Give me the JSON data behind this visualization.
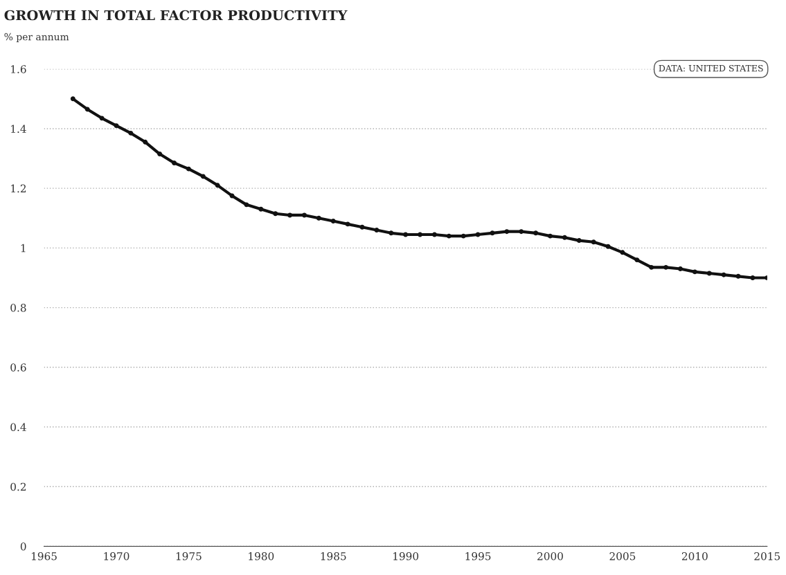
{
  "chart_data": {
    "type": "line",
    "title": "GROWTH IN TOTAL FACTOR PRODUCTIVITY",
    "subtitle": "% per annum",
    "annotations": [
      "DATA: UNITED STATES"
    ],
    "x": [
      1967,
      1968,
      1969,
      1970,
      1971,
      1972,
      1973,
      1974,
      1975,
      1976,
      1977,
      1978,
      1979,
      1980,
      1981,
      1982,
      1983,
      1984,
      1985,
      1986,
      1987,
      1988,
      1989,
      1990,
      1991,
      1992,
      1993,
      1994,
      1995,
      1996,
      1997,
      1998,
      1999,
      2000,
      2001,
      2002,
      2003,
      2004,
      2005,
      2006,
      2007,
      2008,
      2009,
      2010,
      2011,
      2012,
      2013,
      2014,
      2015
    ],
    "series": [
      {
        "color": "#111111",
        "values": [
          1.5,
          1.465,
          1.435,
          1.41,
          1.385,
          1.355,
          1.315,
          1.285,
          1.265,
          1.24,
          1.21,
          1.175,
          1.145,
          1.13,
          1.115,
          1.11,
          1.11,
          1.1,
          1.09,
          1.08,
          1.07,
          1.06,
          1.05,
          1.045,
          1.045,
          1.045,
          1.04,
          1.04,
          1.045,
          1.05,
          1.055,
          1.055,
          1.05,
          1.04,
          1.035,
          1.025,
          1.02,
          1.005,
          0.985,
          0.96,
          0.935,
          0.935,
          0.93,
          0.92,
          0.915,
          0.91,
          0.905,
          0.9,
          0.9
        ]
      }
    ],
    "xlim": [
      1965,
      2015
    ],
    "xticks": [
      1965,
      1970,
      1975,
      1980,
      1985,
      1990,
      1995,
      2000,
      2005,
      2010,
      2015
    ],
    "ylim": [
      0,
      1.6
    ],
    "yticks": [
      0,
      {
        "value": 0.2,
        "label": "0.2"
      },
      {
        "value": 0.4,
        "label": "0.4"
      },
      {
        "value": 0.6,
        "label": "0.6"
      },
      {
        "value": 0.8,
        "label": "0.8"
      },
      1,
      {
        "value": 1.2,
        "label": "1.2"
      },
      {
        "value": 1.4,
        "label": "1.4"
      },
      {
        "value": 1.6,
        "label": "1.6"
      }
    ],
    "grid": "y",
    "marker": "circle",
    "line_style": "solid",
    "legend": false
  }
}
